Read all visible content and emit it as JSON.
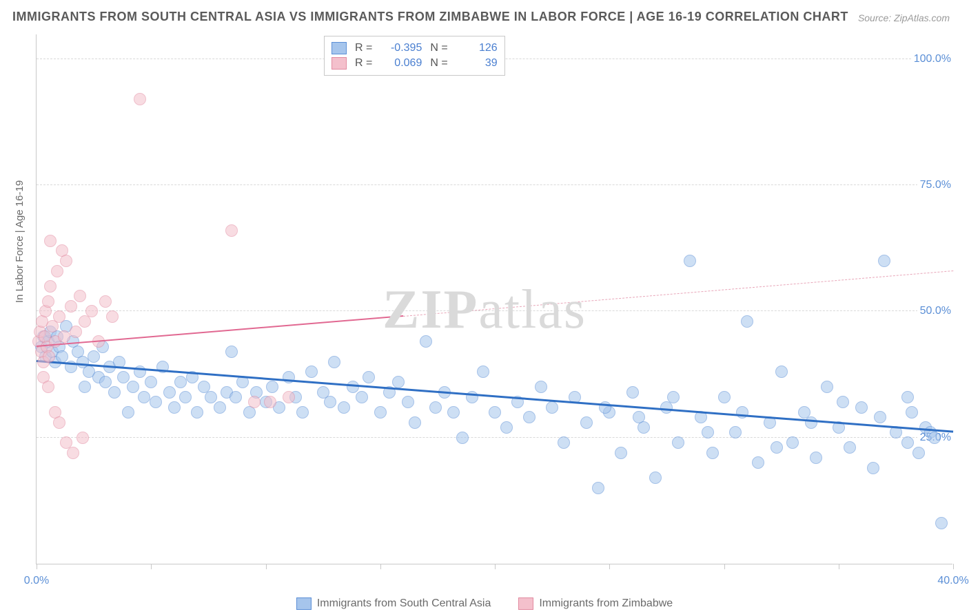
{
  "title": "IMMIGRANTS FROM SOUTH CENTRAL ASIA VS IMMIGRANTS FROM ZIMBABWE IN LABOR FORCE | AGE 16-19 CORRELATION CHART",
  "source_label": "Source:",
  "source_value": "ZipAtlas.com",
  "watermark_a": "ZIP",
  "watermark_b": "atlas",
  "ylabel": "In Labor Force | Age 16-19",
  "chart": {
    "type": "scatter",
    "xlim": [
      0,
      40
    ],
    "ylim": [
      0,
      105
    ],
    "x_ticks": [
      0,
      5,
      10,
      15,
      20,
      25,
      30,
      35,
      40
    ],
    "x_tick_labels": {
      "0": "0.0%",
      "40": "40.0%"
    },
    "y_gridlines": [
      25,
      50,
      75,
      100
    ],
    "y_tick_labels": {
      "25": "25.0%",
      "50": "50.0%",
      "75": "75.0%",
      "100": "100.0%"
    },
    "background_color": "#ffffff",
    "grid_color": "#d8d8d8",
    "axis_color": "#c8c8c8",
    "marker_radius": 9,
    "marker_opacity": 0.55,
    "series": [
      {
        "id": "sca",
        "label": "Immigrants from South Central Asia",
        "fill": "#a6c5ec",
        "stroke": "#5b8fd6",
        "R": "-0.395",
        "N": "126",
        "trend": {
          "x1": 0,
          "y1": 40,
          "x2": 40,
          "y2": 26,
          "color": "#2f6fc4",
          "width": 3,
          "dash": false
        },
        "points": [
          [
            0.2,
            43
          ],
          [
            0.3,
            45
          ],
          [
            0.4,
            41
          ],
          [
            0.5,
            44
          ],
          [
            0.6,
            46
          ],
          [
            0.7,
            42
          ],
          [
            0.8,
            40
          ],
          [
            0.9,
            45
          ],
          [
            1.0,
            43
          ],
          [
            1.1,
            41
          ],
          [
            1.3,
            47
          ],
          [
            1.5,
            39
          ],
          [
            1.6,
            44
          ],
          [
            1.8,
            42
          ],
          [
            2.0,
            40
          ],
          [
            2.1,
            35
          ],
          [
            2.3,
            38
          ],
          [
            2.5,
            41
          ],
          [
            2.7,
            37
          ],
          [
            2.9,
            43
          ],
          [
            3.0,
            36
          ],
          [
            3.2,
            39
          ],
          [
            3.4,
            34
          ],
          [
            3.6,
            40
          ],
          [
            3.8,
            37
          ],
          [
            4.0,
            30
          ],
          [
            4.2,
            35
          ],
          [
            4.5,
            38
          ],
          [
            4.7,
            33
          ],
          [
            5.0,
            36
          ],
          [
            5.2,
            32
          ],
          [
            5.5,
            39
          ],
          [
            5.8,
            34
          ],
          [
            6.0,
            31
          ],
          [
            6.3,
            36
          ],
          [
            6.5,
            33
          ],
          [
            6.8,
            37
          ],
          [
            7.0,
            30
          ],
          [
            7.3,
            35
          ],
          [
            7.6,
            33
          ],
          [
            8.0,
            31
          ],
          [
            8.3,
            34
          ],
          [
            8.5,
            42
          ],
          [
            8.7,
            33
          ],
          [
            9.0,
            36
          ],
          [
            9.3,
            30
          ],
          [
            9.6,
            34
          ],
          [
            10.0,
            32
          ],
          [
            10.3,
            35
          ],
          [
            10.6,
            31
          ],
          [
            11.0,
            37
          ],
          [
            11.3,
            33
          ],
          [
            11.6,
            30
          ],
          [
            12.0,
            38
          ],
          [
            12.5,
            34
          ],
          [
            12.8,
            32
          ],
          [
            13.0,
            40
          ],
          [
            13.4,
            31
          ],
          [
            13.8,
            35
          ],
          [
            14.2,
            33
          ],
          [
            14.5,
            37
          ],
          [
            15.0,
            30
          ],
          [
            15.4,
            34
          ],
          [
            15.8,
            36
          ],
          [
            16.2,
            32
          ],
          [
            16.5,
            28
          ],
          [
            17.0,
            44
          ],
          [
            17.4,
            31
          ],
          [
            17.8,
            34
          ],
          [
            18.2,
            30
          ],
          [
            18.6,
            25
          ],
          [
            19.0,
            33
          ],
          [
            19.5,
            38
          ],
          [
            20.0,
            30
          ],
          [
            20.5,
            27
          ],
          [
            21.0,
            32
          ],
          [
            21.5,
            29
          ],
          [
            22.0,
            35
          ],
          [
            22.5,
            31
          ],
          [
            23.0,
            24
          ],
          [
            23.5,
            33
          ],
          [
            24.0,
            28
          ],
          [
            24.5,
            15
          ],
          [
            25.0,
            30
          ],
          [
            25.5,
            22
          ],
          [
            26.0,
            34
          ],
          [
            26.5,
            27
          ],
          [
            27.0,
            17
          ],
          [
            27.5,
            31
          ],
          [
            28.0,
            24
          ],
          [
            28.5,
            60
          ],
          [
            29.0,
            29
          ],
          [
            29.5,
            22
          ],
          [
            30.0,
            33
          ],
          [
            30.5,
            26
          ],
          [
            31.0,
            48
          ],
          [
            31.5,
            20
          ],
          [
            32.0,
            28
          ],
          [
            32.5,
            38
          ],
          [
            33.0,
            24
          ],
          [
            33.5,
            30
          ],
          [
            34.0,
            21
          ],
          [
            34.5,
            35
          ],
          [
            35.0,
            27
          ],
          [
            35.5,
            23
          ],
          [
            36.0,
            31
          ],
          [
            36.5,
            19
          ],
          [
            37.0,
            60
          ],
          [
            37.5,
            26
          ],
          [
            38.0,
            24
          ],
          [
            38.2,
            30
          ],
          [
            38.5,
            22
          ],
          [
            38.8,
            27
          ],
          [
            39.0,
            26
          ],
          [
            39.2,
            25
          ],
          [
            39.5,
            8
          ],
          [
            38.0,
            33
          ],
          [
            36.8,
            29
          ],
          [
            35.2,
            32
          ],
          [
            33.8,
            28
          ],
          [
            32.3,
            23
          ],
          [
            30.8,
            30
          ],
          [
            29.3,
            26
          ],
          [
            27.8,
            33
          ],
          [
            26.3,
            29
          ],
          [
            24.8,
            31
          ]
        ]
      },
      {
        "id": "zim",
        "label": "Immigrants from Zimbabwe",
        "fill": "#f4c0cc",
        "stroke": "#e28aa0",
        "R": "0.069",
        "N": "39",
        "trend_solid": {
          "x1": 0,
          "y1": 43,
          "x2": 16,
          "y2": 49,
          "color": "#e16891",
          "width": 2
        },
        "trend_dash": {
          "x1": 16,
          "y1": 49,
          "x2": 40,
          "y2": 58,
          "color": "#e8a5b8",
          "width": 1.5
        },
        "points": [
          [
            0.1,
            44
          ],
          [
            0.15,
            46
          ],
          [
            0.2,
            42
          ],
          [
            0.25,
            48
          ],
          [
            0.3,
            40
          ],
          [
            0.35,
            45
          ],
          [
            0.4,
            50
          ],
          [
            0.45,
            43
          ],
          [
            0.5,
            52
          ],
          [
            0.55,
            41
          ],
          [
            0.6,
            55
          ],
          [
            0.7,
            47
          ],
          [
            0.8,
            44
          ],
          [
            0.9,
            58
          ],
          [
            1.0,
            49
          ],
          [
            1.1,
            62
          ],
          [
            1.2,
            45
          ],
          [
            1.3,
            60
          ],
          [
            1.5,
            51
          ],
          [
            1.7,
            46
          ],
          [
            1.9,
            53
          ],
          [
            2.1,
            48
          ],
          [
            2.4,
            50
          ],
          [
            2.7,
            44
          ],
          [
            3.0,
            52
          ],
          [
            3.3,
            49
          ],
          [
            0.3,
            37
          ],
          [
            0.5,
            35
          ],
          [
            0.8,
            30
          ],
          [
            1.0,
            28
          ],
          [
            1.3,
            24
          ],
          [
            1.6,
            22
          ],
          [
            2.0,
            25
          ],
          [
            0.6,
            64
          ],
          [
            4.5,
            92
          ],
          [
            8.5,
            66
          ],
          [
            9.5,
            32
          ],
          [
            10.2,
            32
          ],
          [
            11.0,
            33
          ]
        ]
      }
    ]
  },
  "stats_legend_labels": {
    "R": "R =",
    "N": "N ="
  }
}
